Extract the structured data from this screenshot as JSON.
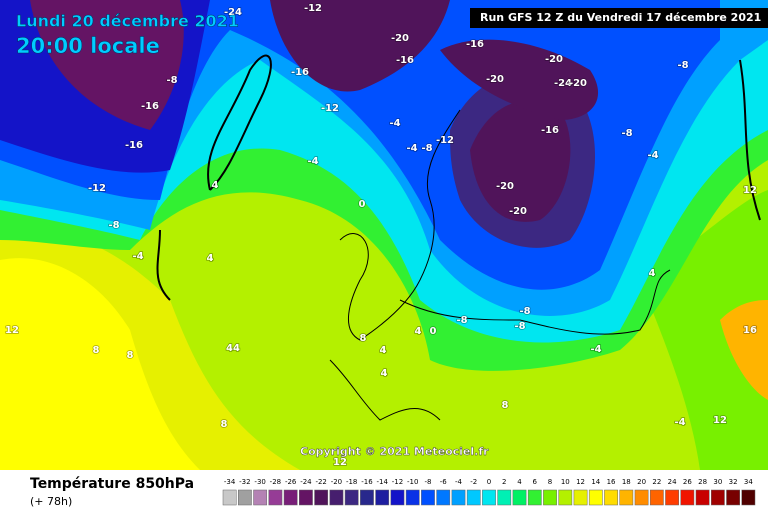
{
  "header": {
    "date": "Lundi 20 décembre 2021",
    "time": "20:00 locale",
    "run": "Run GFS 12 Z du Vendredi 17 décembre 2021"
  },
  "copyright": "Copyright © 2021 Meteociel.fr",
  "footer": {
    "title": "Température 850hPa",
    "lead": "(+ 78h)"
  },
  "scale": {
    "values": [
      -34,
      -32,
      -30,
      -28,
      -26,
      -24,
      -22,
      -20,
      -18,
      -16,
      -14,
      -12,
      -10,
      -8,
      -6,
      -4,
      -2,
      0,
      2,
      4,
      6,
      8,
      10,
      12,
      14,
      16,
      18,
      20,
      22,
      24,
      26,
      28,
      30,
      32,
      34
    ],
    "colors": [
      "#c8c8c8",
      "#a0a0a0",
      "#b482b4",
      "#963c96",
      "#781e78",
      "#641464",
      "#50145a",
      "#461e6e",
      "#3c2882",
      "#28288c",
      "#1e1ea0",
      "#1414c8",
      "#0a32e6",
      "#0050ff",
      "#0078ff",
      "#00a0ff",
      "#00c8ff",
      "#00e6f0",
      "#00f0b4",
      "#00f064",
      "#32f032",
      "#78f000",
      "#b4f000",
      "#e6f000",
      "#ffff00",
      "#ffdc00",
      "#ffb400",
      "#ff8c00",
      "#ff6400",
      "#ff3c00",
      "#f01400",
      "#c80000",
      "#a00000",
      "#780000",
      "#500000"
    ]
  },
  "contour_labels": [
    -24,
    -12,
    -20,
    -16,
    -20,
    -20,
    -24,
    -20,
    -16,
    -20,
    -20,
    -8,
    -8,
    -4,
    -16,
    -16,
    -12,
    -8,
    -4,
    4,
    4,
    -4,
    -4,
    -12,
    0,
    -4,
    -8,
    4,
    0,
    -8,
    -8,
    -8,
    -4,
    8,
    12,
    8,
    44,
    8,
    4,
    4,
    8,
    12,
    16,
    12,
    -4,
    12,
    8,
    4,
    -16,
    -16,
    -12,
    -8
  ]
}
